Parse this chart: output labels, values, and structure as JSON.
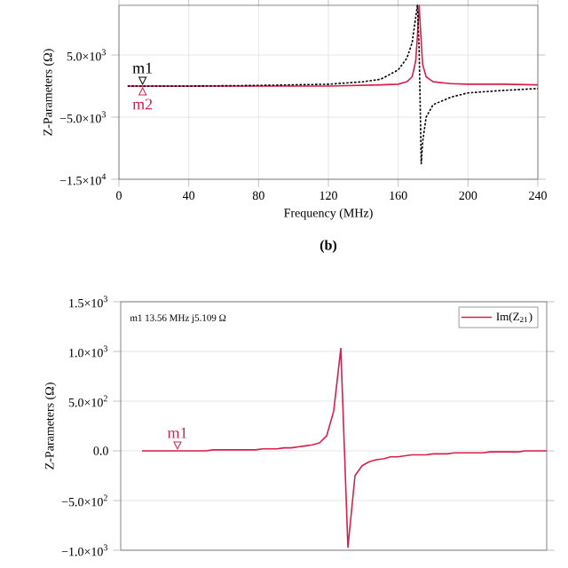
{
  "chart_data": [
    {
      "type": "line",
      "xlabel": "Frequency (MHz)",
      "ylabel": "Z-Parameters (Ω)",
      "xlim": [
        0,
        240
      ],
      "ylim": [
        -15000,
        13000
      ],
      "xticks": [
        0,
        40,
        80,
        120,
        160,
        200,
        240
      ],
      "yticks": [
        {
          "value": -15000,
          "label": "−1.5×10$^{4}$"
        },
        {
          "value": -5000,
          "label": "−5.0×10$^{3}$"
        },
        {
          "value": 5000,
          "label": "5.0×10$^{3}$"
        }
      ],
      "grid": true,
      "legend": false,
      "series": [
        {
          "color": "#000000",
          "line_style": "dotted",
          "x": [
            5,
            40,
            80,
            120,
            140,
            150,
            160,
            165,
            168,
            170,
            171,
            172,
            172.6,
            173.2,
            174,
            176,
            180,
            190,
            200,
            220,
            240
          ],
          "values": [
            0,
            0,
            100,
            300,
            700,
            1100,
            2600,
            4500,
            7000,
            11000,
            13000,
            6000,
            -3000,
            -12500,
            -9000,
            -5000,
            -3000,
            -1800,
            -1100,
            -700,
            -400
          ]
        },
        {
          "color": "#d6204a",
          "line_style": "solid",
          "x": [
            5,
            40,
            80,
            120,
            150,
            160,
            165,
            168,
            170,
            171,
            172,
            173,
            174,
            176,
            180,
            190,
            200,
            220,
            240
          ],
          "values": [
            0,
            0,
            0,
            0,
            200,
            300,
            700,
            1500,
            4000,
            8000,
            13000,
            8000,
            3500,
            1500,
            700,
            400,
            300,
            300,
            200
          ]
        }
      ],
      "annotations": [
        {
          "text": "m1",
          "x": 13.56,
          "y": 0
        },
        {
          "text": "m2",
          "x": 13.56,
          "y": 0
        },
        "**(b)**"
      ]
    },
    {
      "type": "line",
      "ylabel": "Z-Parameters (Ω)",
      "categories": [
        null,
        null,
        null,
        null,
        null,
        null,
        null,
        null,
        null,
        null,
        null,
        null,
        null,
        null,
        null,
        null,
        null,
        null,
        null,
        null,
        null,
        null,
        null,
        null,
        null,
        null,
        null,
        null,
        null,
        null,
        null,
        null,
        null,
        null,
        null,
        null,
        null,
        null,
        null,
        null,
        null,
        null,
        null,
        null,
        null,
        null,
        null,
        null,
        null,
        null,
        null,
        null,
        null,
        null,
        null,
        null,
        null,
        null
      ],
      "ylim": [
        -1000,
        1500
      ],
      "yticks": [
        {
          "value": -1000,
          "label": "−1.0×10$^{3}$"
        },
        {
          "value": -500,
          "label": "−5.0×10$^{2}$"
        },
        {
          "value": 0,
          "label": "0.0"
        },
        {
          "value": 500,
          "label": "5.0×10$^{2}$"
        },
        {
          "value": 1000,
          "label": "1.0×10$^{3}$"
        },
        {
          "value": 1500,
          "label": "1.5×10$^{3}$"
        }
      ],
      "tick_labels": "y",
      "grid": "y",
      "legend": "top right",
      "series": [
        {
          "name": "Im(Z$_{21}$)",
          "color": "#d6204a",
          "line_style": "solid",
          "values": [
            0,
            0,
            0,
            0,
            0,
            0,
            0,
            0,
            0,
            0,
            10,
            10,
            10,
            10,
            10,
            10,
            10,
            20,
            20,
            20,
            30,
            30,
            40,
            50,
            60,
            80,
            150,
            400,
            1030,
            -970,
            -250,
            -150,
            -110,
            -90,
            -80,
            -60,
            -60,
            -50,
            -40,
            -40,
            -40,
            -30,
            -30,
            -30,
            -20,
            -20,
            -20,
            -20,
            -20,
            -10,
            -10,
            -10,
            -10,
            -10,
            0,
            0,
            0,
            0
          ]
        }
      ],
      "annotations": [
        {
          "text": "m1",
          "y": 0
        },
        "m1  13.56 MHz  j5.109 Ω"
      ]
    }
  ]
}
